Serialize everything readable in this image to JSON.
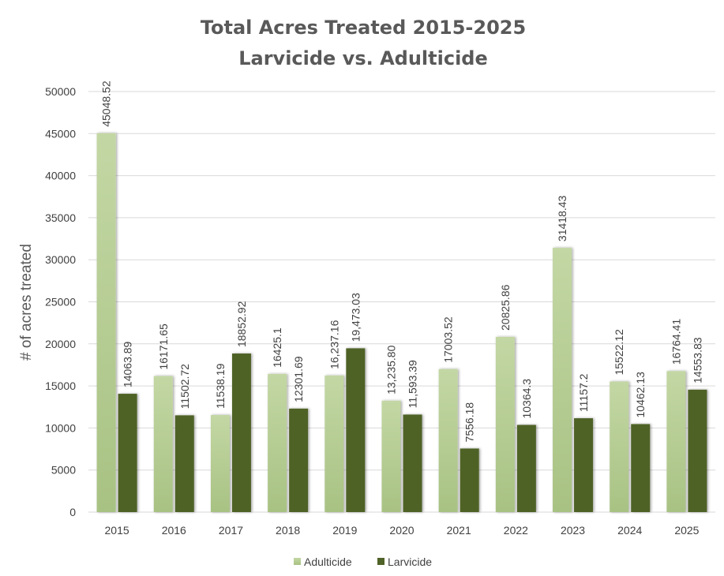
{
  "chart_data": {
    "type": "bar",
    "title": "Total Acres Treated 2015-2025",
    "subtitle": "Larvicide vs. Adulticide",
    "xlabel": "",
    "ylabel": "# of acres treated",
    "ylim": [
      0,
      50000
    ],
    "yticks": [
      "0",
      "5000",
      "10000",
      "15000",
      "20000",
      "25000",
      "30000",
      "35000",
      "40000",
      "45000",
      "50000"
    ],
    "grid": true,
    "legend": "bottom",
    "categories": [
      "2015",
      "2016",
      "2017",
      "2018",
      "2019",
      "2020",
      "2021",
      "2022",
      "2023",
      "2024",
      "2025"
    ],
    "series": [
      {
        "name": "Adulticide",
        "color": "#bcd39a",
        "values": [
          45048.52,
          16171.65,
          11538.19,
          16425.1,
          16237.16,
          13235.8,
          17003.52,
          20825.86,
          31418.43,
          15522.12,
          16764.41
        ],
        "labels": [
          "45048.52",
          "16171.65",
          "11538.19",
          "16425.1",
          "16,237.16",
          "13,235.80",
          "17003.52",
          "20825.86",
          "31418.43",
          "15522.12",
          "16764.41"
        ]
      },
      {
        "name": "Larvicide",
        "color": "#4f6228",
        "values": [
          14063.89,
          11502.72,
          18852.92,
          12301.69,
          19473.03,
          11593.39,
          7556.18,
          10364.3,
          11157.2,
          10462.13,
          14553.83
        ],
        "labels": [
          "14063.89",
          "11502.72",
          "18852.92",
          "12301.69",
          "19,473.03",
          "11,593.39",
          "7556.18",
          "10364.3",
          "11157.2",
          "10462.13",
          "14553.83"
        ]
      }
    ]
  }
}
